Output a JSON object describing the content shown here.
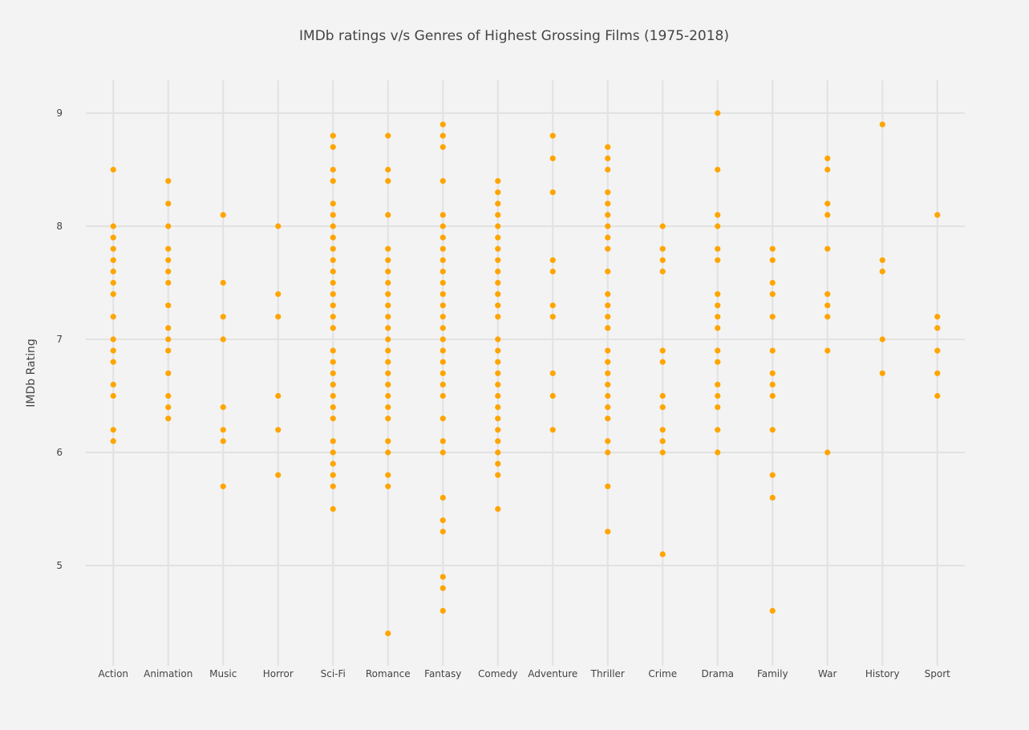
{
  "chart_data": {
    "type": "scatter",
    "title": "IMDb ratings v/s Genres of Highest Grossing Films (1975-2018)",
    "xlabel": "",
    "ylabel": "IMDb Rating",
    "ylim": [
      4.15,
      9.29
    ],
    "yticks": [
      5,
      6,
      7,
      8,
      9
    ],
    "grid": true,
    "marker_color": "#ffa500",
    "categories": [
      "Action",
      "Animation",
      "Music",
      "Horror",
      "Sci-Fi",
      "Romance",
      "Fantasy",
      "Comedy",
      "Adventure",
      "Thriller",
      "Crime",
      "Drama",
      "Family",
      "War",
      "History",
      "Sport"
    ],
    "series": [
      {
        "values": [
          [
            8.5,
            8.0,
            7.9,
            7.8,
            7.7,
            7.6,
            7.5,
            7.4,
            7.2,
            7.0,
            6.9,
            6.8,
            6.6,
            6.5,
            6.2,
            6.1
          ],
          [
            8.4,
            8.2,
            8.0,
            7.8,
            7.7,
            7.6,
            7.5,
            7.3,
            7.1,
            7.0,
            6.9,
            6.7,
            6.5,
            6.4,
            6.3
          ],
          [
            8.1,
            7.5,
            7.2,
            7.0,
            6.4,
            6.2,
            6.1,
            5.7
          ],
          [
            8.0,
            7.4,
            7.2,
            6.5,
            6.2,
            5.8
          ],
          [
            8.8,
            8.7,
            8.5,
            8.4,
            8.2,
            8.1,
            8.0,
            7.9,
            7.8,
            7.7,
            7.6,
            7.5,
            7.4,
            7.3,
            7.2,
            7.1,
            6.9,
            6.8,
            6.7,
            6.6,
            6.5,
            6.4,
            6.3,
            6.1,
            6.0,
            5.9,
            5.8,
            5.7,
            5.5
          ],
          [
            8.8,
            8.5,
            8.4,
            8.1,
            7.8,
            7.7,
            7.6,
            7.5,
            7.4,
            7.3,
            7.2,
            7.1,
            7.0,
            6.9,
            6.8,
            6.7,
            6.6,
            6.5,
            6.4,
            6.3,
            6.1,
            6.0,
            5.8,
            5.7,
            4.4
          ],
          [
            8.9,
            8.8,
            8.7,
            8.4,
            8.1,
            8.0,
            7.9,
            7.8,
            7.7,
            7.6,
            7.5,
            7.4,
            7.3,
            7.2,
            7.1,
            7.0,
            6.9,
            6.8,
            6.7,
            6.6,
            6.5,
            6.3,
            6.1,
            6.0,
            5.6,
            5.4,
            5.3,
            4.9,
            4.8,
            4.6
          ],
          [
            8.4,
            8.3,
            8.2,
            8.1,
            8.0,
            7.9,
            7.8,
            7.7,
            7.6,
            7.5,
            7.4,
            7.3,
            7.2,
            7.0,
            6.9,
            6.8,
            6.7,
            6.6,
            6.5,
            6.4,
            6.3,
            6.2,
            6.1,
            6.0,
            5.9,
            5.8,
            5.5
          ],
          [
            8.8,
            8.6,
            8.3,
            7.7,
            7.6,
            7.3,
            7.2,
            6.7,
            6.5,
            6.2
          ],
          [
            8.7,
            8.6,
            8.5,
            8.3,
            8.2,
            8.1,
            8.0,
            7.9,
            7.8,
            7.6,
            7.4,
            7.3,
            7.2,
            7.1,
            6.9,
            6.8,
            6.7,
            6.6,
            6.5,
            6.4,
            6.3,
            6.1,
            6.0,
            5.7,
            5.3
          ],
          [
            8.0,
            7.8,
            7.7,
            7.6,
            6.9,
            6.8,
            6.5,
            6.4,
            6.2,
            6.1,
            6.0,
            5.1
          ],
          [
            9.0,
            8.5,
            8.1,
            8.0,
            7.8,
            7.7,
            7.4,
            7.3,
            7.2,
            7.1,
            6.9,
            6.8,
            6.6,
            6.5,
            6.4,
            6.2,
            6.0
          ],
          [
            7.8,
            7.7,
            7.5,
            7.4,
            7.2,
            6.9,
            6.7,
            6.6,
            6.5,
            6.2,
            5.8,
            5.6,
            4.6
          ],
          [
            8.6,
            8.5,
            8.2,
            8.1,
            7.8,
            7.4,
            7.3,
            7.2,
            6.9,
            6.0
          ],
          [
            8.9,
            7.7,
            7.6,
            7.0,
            6.7
          ],
          [
            8.1,
            7.2,
            7.1,
            6.9,
            6.7,
            6.5
          ]
        ]
      }
    ]
  }
}
